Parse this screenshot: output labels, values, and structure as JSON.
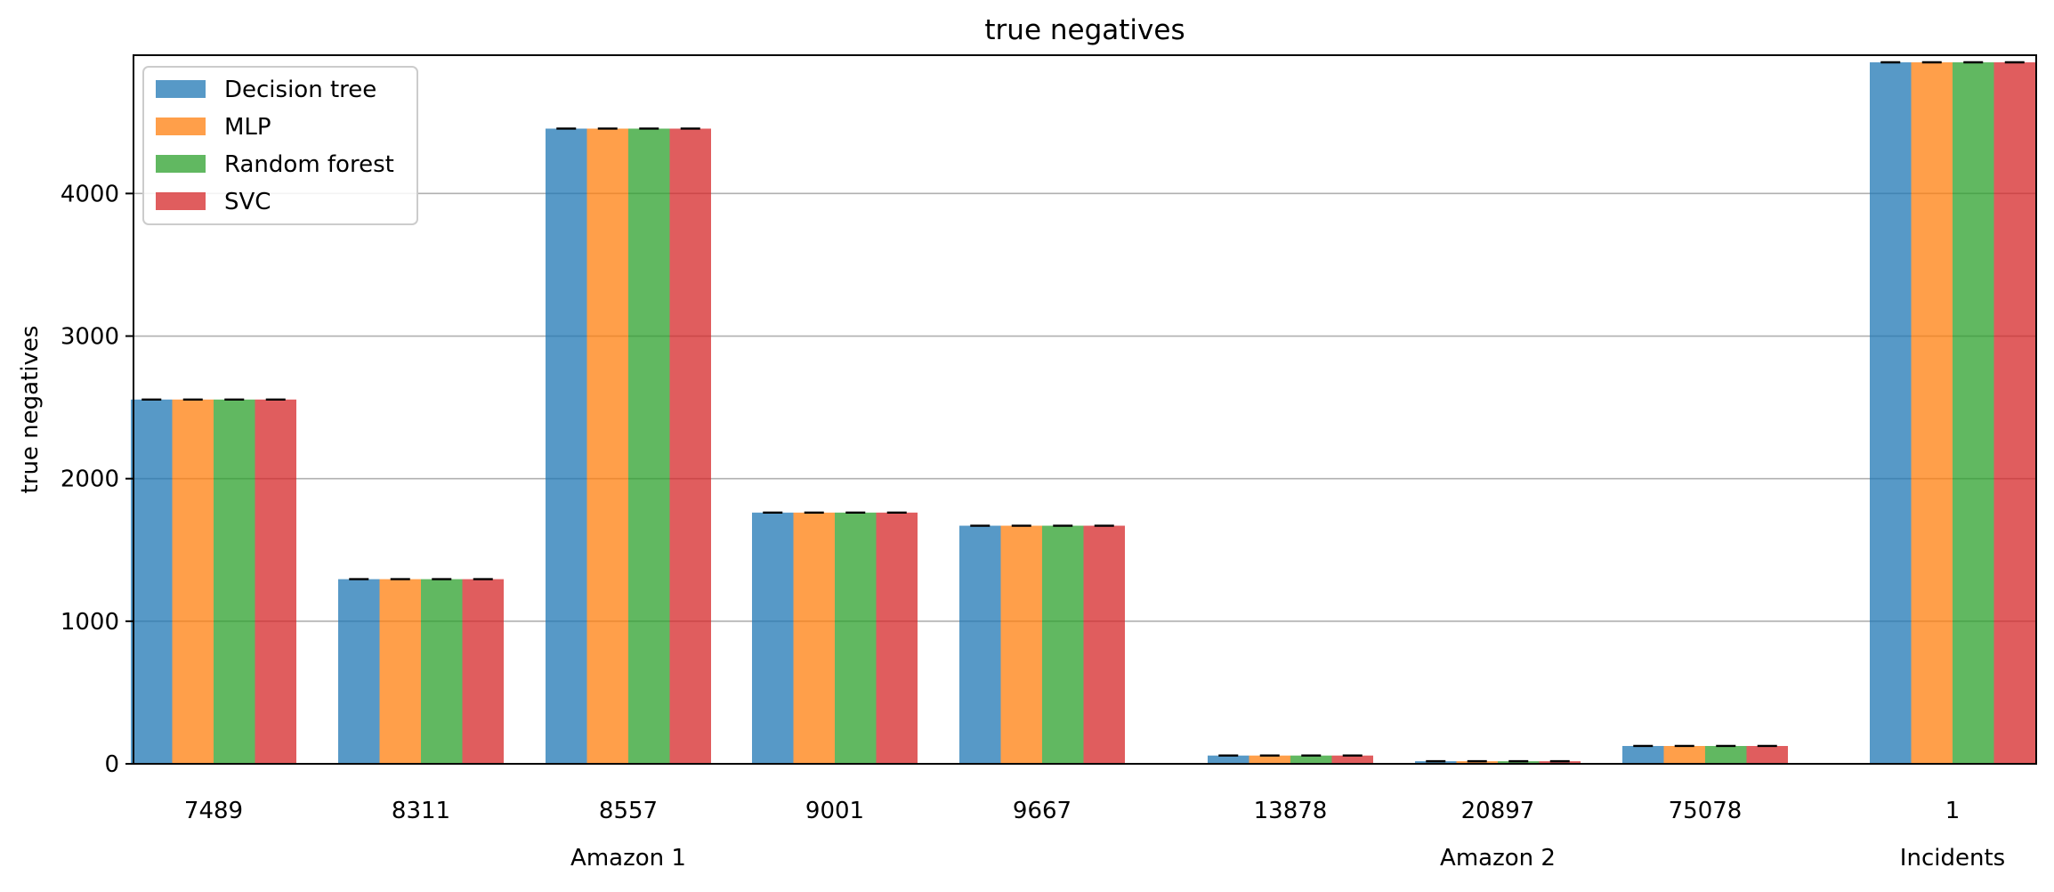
{
  "chart_data": {
    "type": "bar",
    "title": "true negatives",
    "xlabel": "",
    "ylabel": "true negatives",
    "ylim": [
      0,
      4970
    ],
    "yticks": [
      0,
      1000,
      2000,
      3000,
      4000
    ],
    "grid": "y",
    "legend_position": "top-left",
    "categories": [
      "7489",
      "8311",
      "8557",
      "9001",
      "9667",
      "13878",
      "20897",
      "75078",
      "1"
    ],
    "groups": [
      {
        "label": "Amazon 1",
        "categories": [
          "7489",
          "8311",
          "8557",
          "9001",
          "9667"
        ]
      },
      {
        "label": "Amazon 2",
        "categories": [
          "13878",
          "20897",
          "75078"
        ]
      },
      {
        "label": "Incidents",
        "categories": [
          "1"
        ]
      }
    ],
    "series": [
      {
        "name": "Decision tree",
        "color": "#1f77b4",
        "values": [
          2555,
          1295,
          4455,
          1762,
          1670,
          58,
          18,
          125,
          4920
        ]
      },
      {
        "name": "MLP",
        "color": "#ff7f0e",
        "values": [
          2555,
          1295,
          4455,
          1762,
          1670,
          58,
          18,
          125,
          4920
        ]
      },
      {
        "name": "Random forest",
        "color": "#2ca02c",
        "values": [
          2555,
          1295,
          4455,
          1762,
          1670,
          58,
          18,
          125,
          4920
        ]
      },
      {
        "name": "SVC",
        "color": "#d62728",
        "values": [
          2555,
          1295,
          4455,
          1762,
          1670,
          58,
          18,
          125,
          4920
        ]
      }
    ],
    "error_bars": true
  }
}
